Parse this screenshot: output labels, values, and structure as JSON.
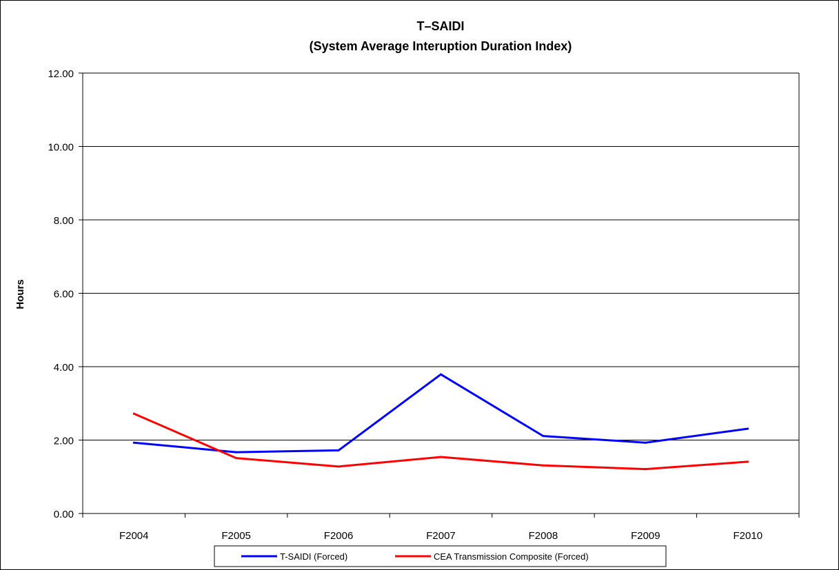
{
  "chart_data": {
    "type": "line",
    "title": [
      "T–SAIDI",
      "(System Average Interuption Duration Index)"
    ],
    "xlabel": "",
    "ylabel": "Hours",
    "categories": [
      "F2004",
      "F2005",
      "F2006",
      "F2007",
      "F2008",
      "F2009",
      "F2010"
    ],
    "ylim": [
      0,
      12
    ],
    "yticks": [
      "0.00",
      "2.00",
      "4.00",
      "6.00",
      "8.00",
      "10.00",
      "12.00"
    ],
    "grid": true,
    "legend_position": "bottom",
    "series": [
      {
        "name": "T-SAIDI (Forced)",
        "color": "#0000ff",
        "values": [
          1.93,
          1.67,
          1.72,
          3.79,
          2.11,
          1.93,
          2.31
        ]
      },
      {
        "name": "CEA Transmission Composite (Forced)",
        "color": "#ff0000",
        "values": [
          2.72,
          1.51,
          1.28,
          1.54,
          1.31,
          1.21,
          1.41
        ]
      }
    ]
  }
}
